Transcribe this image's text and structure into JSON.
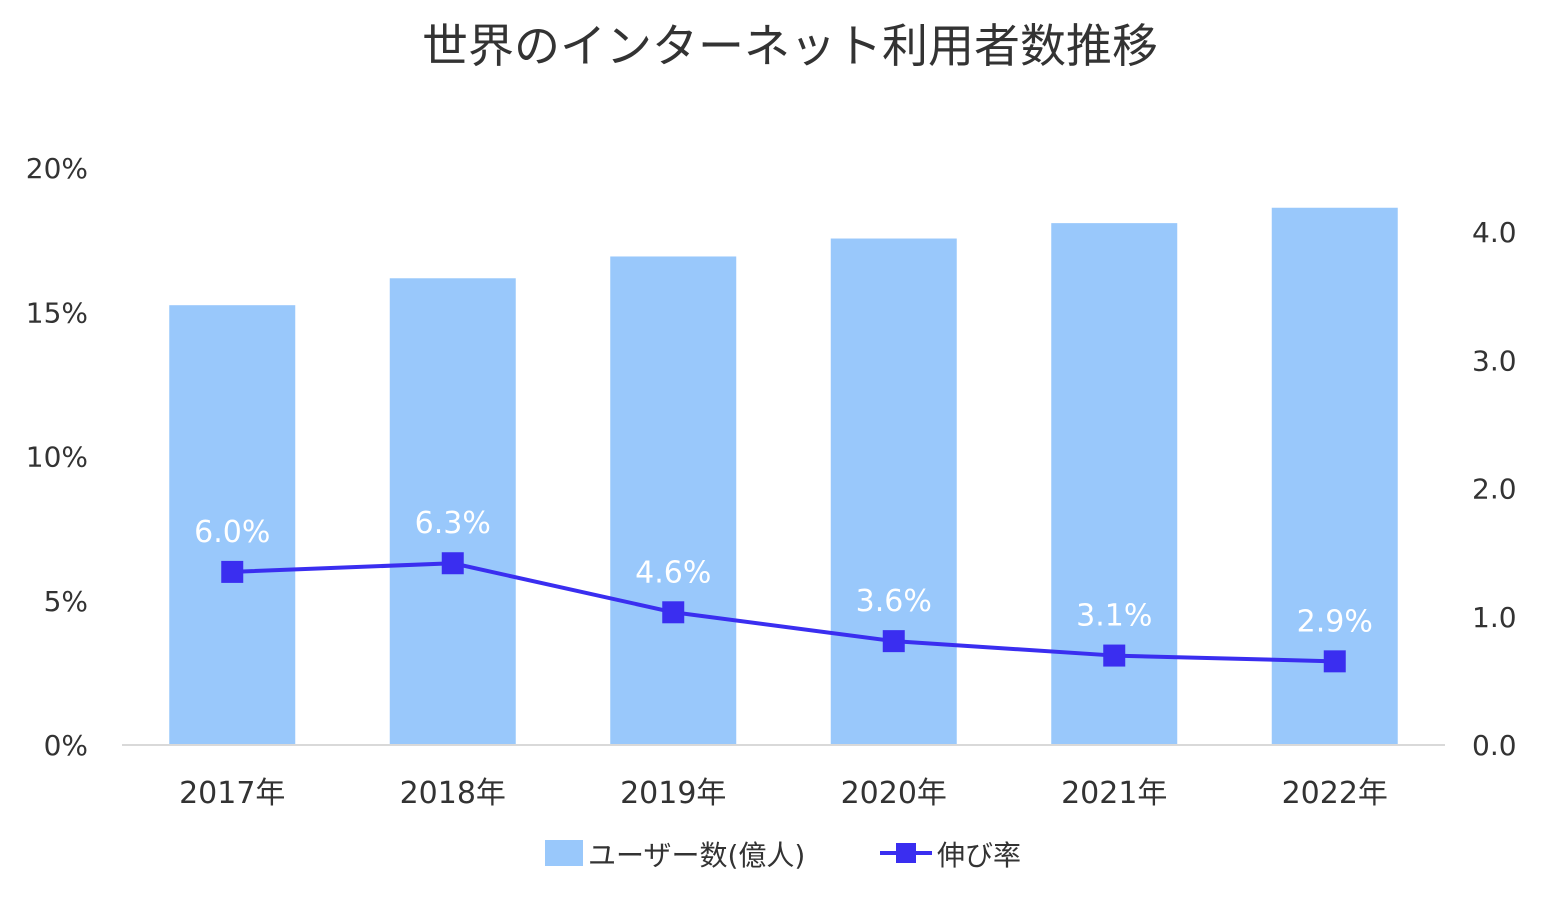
{
  "chart_data": {
    "type": "bar+line",
    "title": "世界のインターネット利用者数推移",
    "categories": [
      "2017年",
      "2018年",
      "2019年",
      "2020年",
      "2021年",
      "2022年"
    ],
    "series": [
      {
        "name": "ユーザー数(億人)",
        "type": "bar",
        "axis": "right",
        "values": [
          3.43,
          3.64,
          3.81,
          3.95,
          4.07,
          4.19
        ],
        "color": "#99c8fb"
      },
      {
        "name": "伸び率",
        "type": "line",
        "axis": "left",
        "values": [
          6.0,
          6.3,
          4.6,
          3.6,
          3.1,
          2.9
        ],
        "data_labels": [
          "6.0%",
          "6.3%",
          "4.6%",
          "3.6%",
          "3.1%",
          "2.9%"
        ],
        "color": "#3a2ef0",
        "marker": "square"
      }
    ],
    "y_left": {
      "ylim": [
        0,
        20
      ],
      "ticks": [
        0,
        5,
        10,
        15,
        20
      ],
      "tick_labels": [
        "0%",
        "5%",
        "10%",
        "15%",
        "20%"
      ]
    },
    "y_right": {
      "ylim": [
        0,
        4.5
      ],
      "ticks": [
        0,
        1,
        2,
        3,
        4
      ],
      "tick_labels": [
        "0.0",
        "1.0",
        "2.0",
        "3.0",
        "4.0"
      ]
    },
    "grid": false,
    "legend_position": "bottom"
  }
}
